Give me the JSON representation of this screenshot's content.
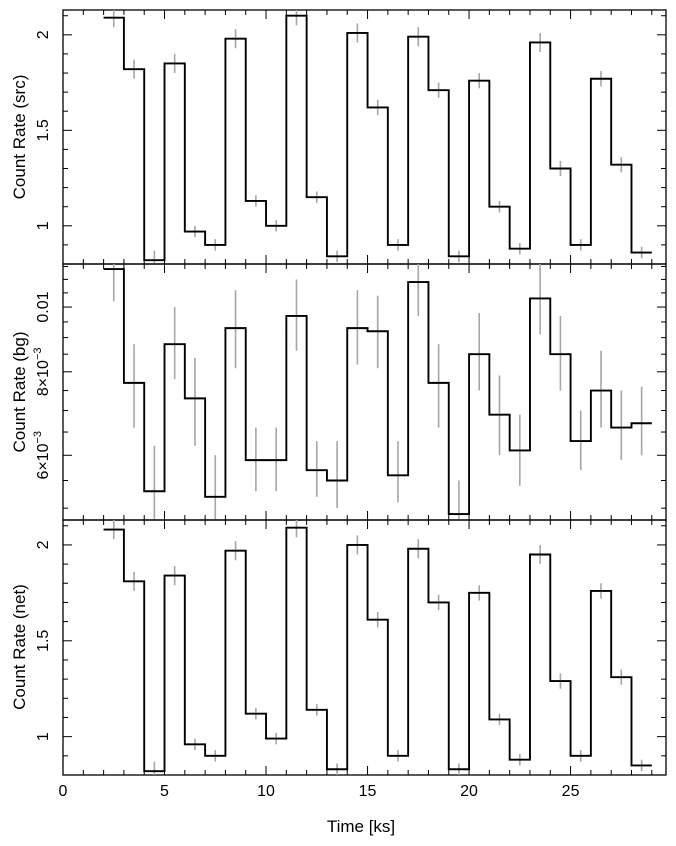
{
  "figure": {
    "xlabel": "Time [ks]"
  },
  "chart_data": [
    {
      "type": "line",
      "step": true,
      "ylabel": "Count Rate (src)",
      "xlim": [
        0,
        29.7
      ],
      "ylim": [
        0.8,
        2.13
      ],
      "yscale": "linear",
      "xticks": [
        0,
        5,
        10,
        15,
        20,
        25
      ],
      "yticks": [
        1,
        1.5,
        2
      ],
      "ytick_labels": [
        "1",
        "1.5",
        "2"
      ],
      "x": [
        2.5,
        3.5,
        4.5,
        5.5,
        6.5,
        7.5,
        8.5,
        9.5,
        10.5,
        11.5,
        12.5,
        13.5,
        14.5,
        15.5,
        16.5,
        17.5,
        18.5,
        19.5,
        20.5,
        21.5,
        22.5,
        23.5,
        24.5,
        25.5,
        26.5,
        27.5,
        28.5
      ],
      "values": [
        2.09,
        1.82,
        0.82,
        1.85,
        0.97,
        0.9,
        1.98,
        1.13,
        1.0,
        2.1,
        1.15,
        0.84,
        2.01,
        1.62,
        0.9,
        1.99,
        1.71,
        0.84,
        1.76,
        1.1,
        0.88,
        1.96,
        1.3,
        0.9,
        1.77,
        1.32,
        0.86
      ],
      "errors": [
        0.05,
        0.05,
        0.05,
        0.05,
        0.03,
        0.03,
        0.05,
        0.03,
        0.03,
        0.05,
        0.03,
        0.03,
        0.05,
        0.04,
        0.03,
        0.05,
        0.04,
        0.03,
        0.04,
        0.03,
        0.03,
        0.05,
        0.04,
        0.03,
        0.04,
        0.04,
        0.03
      ]
    },
    {
      "type": "line",
      "step": true,
      "ylabel": "Count Rate (bg)",
      "xlim": [
        0,
        29.7
      ],
      "ylim": [
        0.0048,
        0.0116
      ],
      "yscale": "log",
      "xticks": [
        0,
        5,
        10,
        15,
        20,
        25
      ],
      "yticks": [
        0.006,
        0.008,
        0.01
      ],
      "ytick_labels": [
        "6×10⁻³",
        "8×10⁻³",
        "0.01"
      ],
      "x": [
        2.5,
        3.5,
        4.5,
        5.5,
        6.5,
        7.5,
        8.5,
        9.5,
        10.5,
        11.5,
        12.5,
        13.5,
        14.5,
        15.5,
        16.5,
        17.5,
        18.5,
        19.5,
        20.5,
        21.5,
        22.5,
        23.5,
        24.5,
        25.5,
        26.5,
        27.5,
        28.5
      ],
      "values": [
        0.0114,
        0.0077,
        0.0053,
        0.0088,
        0.0073,
        0.0052,
        0.0093,
        0.0059,
        0.0059,
        0.0097,
        0.0057,
        0.0055,
        0.0093,
        0.0092,
        0.0056,
        0.0109,
        0.0077,
        0.0049,
        0.0085,
        0.0069,
        0.0061,
        0.0103,
        0.0085,
        0.0063,
        0.0075,
        0.0066,
        0.0067
      ],
      "err_low": [
        0.0102,
        0.0066,
        0.0047,
        0.0078,
        0.0062,
        0.0046,
        0.0081,
        0.0053,
        0.0053,
        0.0086,
        0.0052,
        0.005,
        0.0082,
        0.0081,
        0.0051,
        0.0097,
        0.0066,
        0.0045,
        0.0075,
        0.006,
        0.0054,
        0.0091,
        0.0075,
        0.0057,
        0.0066,
        0.0059,
        0.006
      ],
      "err_high": [
        0.012,
        0.0088,
        0.0062,
        0.01,
        0.0084,
        0.006,
        0.0106,
        0.0066,
        0.0066,
        0.011,
        0.0063,
        0.0063,
        0.0106,
        0.0104,
        0.0063,
        0.012,
        0.0088,
        0.0055,
        0.0098,
        0.0079,
        0.0069,
        0.0117,
        0.0097,
        0.007,
        0.0086,
        0.0075,
        0.0076
      ]
    },
    {
      "type": "line",
      "step": true,
      "ylabel": "Count Rate (net)",
      "xlim": [
        0,
        29.7
      ],
      "ylim": [
        0.8,
        2.13
      ],
      "yscale": "linear",
      "xticks": [
        0,
        5,
        10,
        15,
        20,
        25
      ],
      "xtick_labels": [
        "0",
        "5",
        "10",
        "15",
        "20",
        "25"
      ],
      "yticks": [
        1,
        1.5,
        2
      ],
      "ytick_labels": [
        "1",
        "1.5",
        "2"
      ],
      "x": [
        2.5,
        3.5,
        4.5,
        5.5,
        6.5,
        7.5,
        8.5,
        9.5,
        10.5,
        11.5,
        12.5,
        13.5,
        14.5,
        15.5,
        16.5,
        17.5,
        18.5,
        19.5,
        20.5,
        21.5,
        22.5,
        23.5,
        24.5,
        25.5,
        26.5,
        27.5,
        28.5
      ],
      "values": [
        2.08,
        1.81,
        0.82,
        1.84,
        0.96,
        0.9,
        1.97,
        1.12,
        0.99,
        2.09,
        1.14,
        0.83,
        2.0,
        1.61,
        0.9,
        1.98,
        1.7,
        0.83,
        1.75,
        1.09,
        0.88,
        1.95,
        1.29,
        0.9,
        1.76,
        1.31,
        0.85
      ],
      "errors": [
        0.05,
        0.05,
        0.05,
        0.05,
        0.03,
        0.03,
        0.05,
        0.03,
        0.03,
        0.05,
        0.03,
        0.03,
        0.05,
        0.04,
        0.03,
        0.05,
        0.04,
        0.03,
        0.04,
        0.03,
        0.03,
        0.05,
        0.04,
        0.03,
        0.04,
        0.04,
        0.03
      ]
    }
  ]
}
